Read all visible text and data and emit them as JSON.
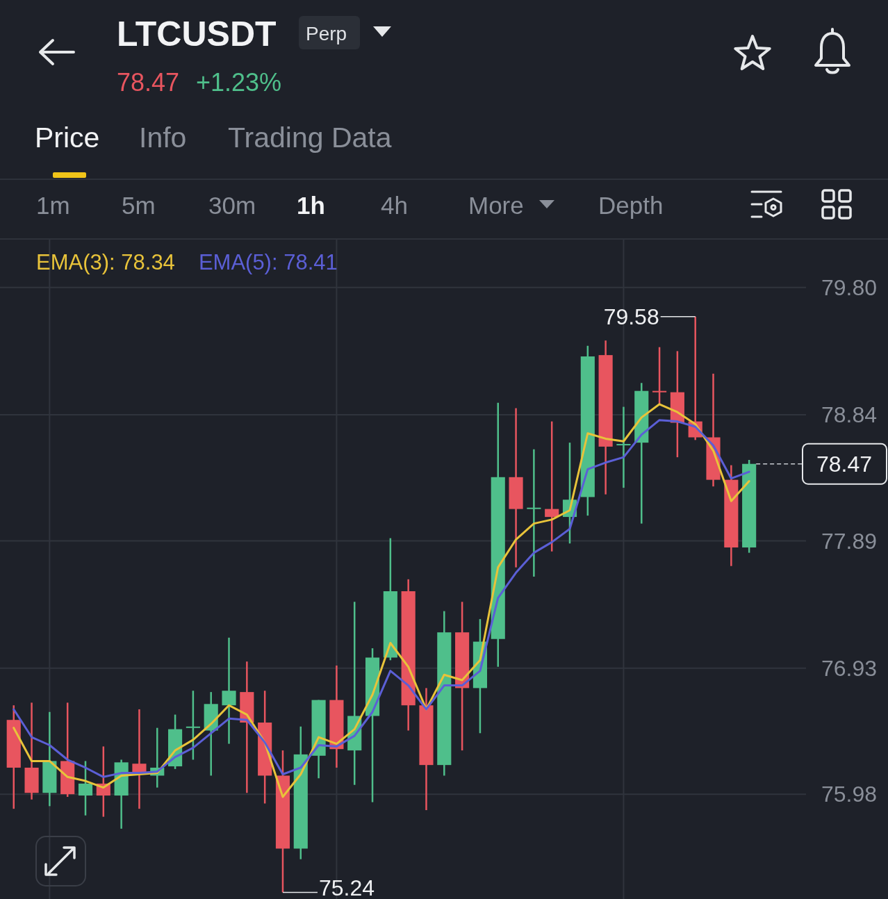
{
  "chart_data": {
    "type": "candlestick",
    "title": "LTCUSDT",
    "categories": [
      null,
      null,
      null,
      null,
      null,
      null,
      null,
      null,
      null,
      null,
      null,
      null,
      null,
      null,
      null,
      null,
      null,
      null,
      null,
      null,
      null,
      null,
      null,
      null,
      null,
      null,
      null,
      null,
      null,
      null,
      null,
      null,
      null,
      null,
      null,
      null,
      null,
      null,
      null,
      null,
      null,
      null
    ],
    "ohlc": [
      [
        76.54,
        76.65,
        75.87,
        76.18
      ],
      [
        76.18,
        76.67,
        75.94,
        75.99
      ],
      [
        75.99,
        76.6,
        75.89,
        76.23
      ],
      [
        76.23,
        76.67,
        75.96,
        75.98
      ],
      [
        75.97,
        76.23,
        75.82,
        76.06
      ],
      [
        76.06,
        76.34,
        75.81,
        75.97
      ],
      [
        75.97,
        76.24,
        75.72,
        76.22
      ],
      [
        76.21,
        76.62,
        75.87,
        76.14
      ],
      [
        76.12,
        76.48,
        76.03,
        76.18
      ],
      [
        76.19,
        76.58,
        76.17,
        76.47
      ],
      [
        76.48,
        76.76,
        76.24,
        76.49
      ],
      [
        76.46,
        76.75,
        76.12,
        76.66
      ],
      [
        76.65,
        77.16,
        76.36,
        76.76
      ],
      [
        76.75,
        76.98,
        75.99,
        76.52
      ],
      [
        76.52,
        76.76,
        75.91,
        76.12
      ],
      [
        76.12,
        76.31,
        75.24,
        75.57
      ],
      [
        75.57,
        76.49,
        75.49,
        76.28
      ],
      [
        76.27,
        76.69,
        76.1,
        76.69
      ],
      [
        76.69,
        76.95,
        76.18,
        76.32
      ],
      [
        76.31,
        77.43,
        76.05,
        76.57
      ],
      [
        76.57,
        77.08,
        75.92,
        77.01
      ],
      [
        77.01,
        77.91,
        76.99,
        77.51
      ],
      [
        77.51,
        77.6,
        76.46,
        76.65
      ],
      [
        76.65,
        76.78,
        75.86,
        76.2
      ],
      [
        76.2,
        77.36,
        76.12,
        77.2
      ],
      [
        77.2,
        77.43,
        76.31,
        76.78
      ],
      [
        76.78,
        77.3,
        76.44,
        77.13
      ],
      [
        77.15,
        78.93,
        76.94,
        78.37
      ],
      [
        78.37,
        78.89,
        77.69,
        78.13
      ],
      [
        78.13,
        78.58,
        77.62,
        78.14
      ],
      [
        78.13,
        78.79,
        77.81,
        78.07
      ],
      [
        78.07,
        78.63,
        77.87,
        78.2
      ],
      [
        78.22,
        79.36,
        78.08,
        79.28
      ],
      [
        79.29,
        79.4,
        78.24,
        78.6
      ],
      [
        78.61,
        78.9,
        78.29,
        78.62
      ],
      [
        78.63,
        79.08,
        78.02,
        79.02
      ],
      [
        79.02,
        79.35,
        78.92,
        79.01
      ],
      [
        79.01,
        79.32,
        78.52,
        78.78
      ],
      [
        78.79,
        79.58,
        78.65,
        78.67
      ],
      [
        78.67,
        79.15,
        78.3,
        78.35
      ],
      [
        78.35,
        78.46,
        77.7,
        77.84
      ],
      [
        77.84,
        78.5,
        77.8,
        78.47
      ]
    ],
    "colors": [
      "#e8555f",
      "#e8555f",
      "#4fbf8b",
      "#e8555f",
      "#4fbf8b",
      "#e8555f",
      "#4fbf8b",
      "#e8555f",
      "#4fbf8b",
      "#4fbf8b",
      "#4fbf8b",
      "#4fbf8b",
      "#4fbf8b",
      "#e8555f",
      "#e8555f",
      "#e8555f",
      "#4fbf8b",
      "#4fbf8b",
      "#e8555f",
      "#4fbf8b",
      "#4fbf8b",
      "#4fbf8b",
      "#e8555f",
      "#e8555f",
      "#4fbf8b",
      "#e8555f",
      "#4fbf8b",
      "#4fbf8b",
      "#e8555f",
      "#4fbf8b",
      "#e8555f",
      "#4fbf8b",
      "#4fbf8b",
      "#e8555f",
      "#4fbf8b",
      "#4fbf8b",
      "#e8555f",
      "#e8555f",
      "#e8555f",
      "#e8555f",
      "#e8555f",
      "#4fbf8b"
    ],
    "series": [
      {
        "name": "EMA(3): 78.34",
        "type": "line",
        "color": "#e8c33a",
        "values": [
          76.48,
          76.23,
          76.23,
          76.11,
          76.08,
          76.03,
          76.12,
          76.13,
          76.14,
          76.31,
          76.39,
          76.51,
          76.65,
          76.58,
          76.37,
          75.96,
          76.13,
          76.41,
          76.36,
          76.47,
          76.73,
          77.12,
          76.94,
          76.62,
          76.88,
          76.84,
          76.99,
          77.69,
          77.9,
          78.02,
          78.05,
          78.12,
          78.7,
          78.66,
          78.64,
          78.82,
          78.92,
          78.86,
          78.77,
          78.57,
          78.19,
          78.34
        ]
      },
      {
        "name": "EMA(5): 78.41",
        "type": "line",
        "color": "#5b5fd6",
        "values": [
          76.62,
          76.41,
          76.35,
          76.24,
          76.18,
          76.11,
          76.14,
          76.14,
          76.15,
          76.26,
          76.33,
          76.44,
          76.55,
          76.54,
          76.37,
          76.13,
          76.18,
          76.35,
          76.34,
          76.42,
          76.6,
          76.91,
          76.8,
          76.62,
          76.8,
          76.8,
          76.91,
          77.46,
          77.65,
          77.8,
          77.88,
          77.98,
          78.43,
          78.48,
          78.52,
          78.69,
          78.8,
          78.79,
          78.75,
          78.61,
          78.36,
          78.41
        ]
      }
    ],
    "ylim": [
      75.19,
      80.16
    ],
    "yticks": [
      75.98,
      76.93,
      77.89,
      78.84,
      {
        "value": 79.8,
        "label": "79.80"
      }
    ],
    "grid": true,
    "legend": "top",
    "tick_labels": "y",
    "ref_lines": [
      {
        "axis": "y",
        "value": 78.47,
        "label": "78.47",
        "line_style": "dashed"
      }
    ],
    "annotations": [
      "Perp",
      "78.47",
      "+1.23%",
      "Price",
      "Info",
      "Trading Data",
      "1m",
      "5m",
      "30m",
      "1h",
      "4h",
      "More",
      "Depth",
      "79.58",
      "75.24"
    ]
  }
}
